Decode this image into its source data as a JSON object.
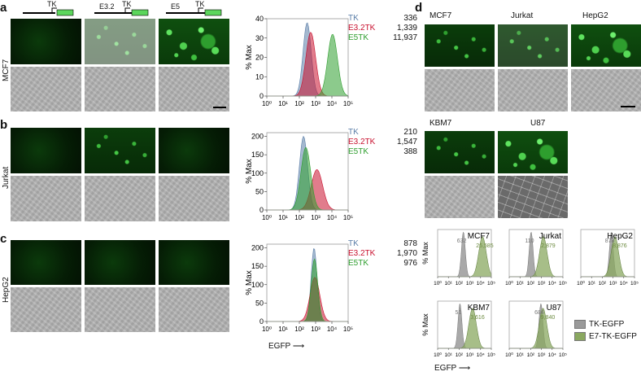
{
  "panels": {
    "a": "a",
    "b": "b",
    "c": "c",
    "d": "d"
  },
  "constructs": {
    "tk": "TK",
    "e32": "E3.2",
    "e5": "E5",
    "egfp_box": "EGFP"
  },
  "rows": {
    "mcf7": "MCF7",
    "jurkat": "Jurkat",
    "hepg2": "HepG2"
  },
  "legend_common": {
    "tk": "TK",
    "e32tk": "E3.2TK",
    "e5tk": "E5TK"
  },
  "hist_values": {
    "mcf7": {
      "tk": "336",
      "e32tk": "1,339",
      "e5tk": "11,937"
    },
    "jurkat": {
      "tk": "210",
      "e32tk": "1,547",
      "e5tk": "388"
    },
    "hepg2": {
      "tk": "878",
      "e32tk": "1,970",
      "e5tk": "976"
    }
  },
  "axis": {
    "ylabel": "% Max",
    "xlabel": "EGFP",
    "xticks": [
      "10⁰",
      "10¹",
      "10²",
      "10³",
      "10⁴",
      "10⁵"
    ]
  },
  "d": {
    "cells_top": [
      "MCF7",
      "Jurkat",
      "HepG2"
    ],
    "cells_mid": [
      "KBM7",
      "U87"
    ],
    "hist_values": {
      "mcf7": {
        "gray": "632",
        "green": "26,585"
      },
      "jurkat": {
        "gray": "110",
        "green": "2,879"
      },
      "hepg2": {
        "gray": "878",
        "green": "8,876"
      },
      "kbm7": {
        "gray": "51",
        "green": "3,616"
      },
      "u87": {
        "gray": "684",
        "green": "9,840"
      }
    },
    "legend": {
      "gray": "TK-EGFP",
      "green": "E7-TK-EGFP"
    }
  },
  "colors": {
    "tk": "#5a7ea8",
    "e32tk": "#c8102e",
    "e5tk": "#2e9e2e",
    "gray": "#9a9a9a",
    "green": "#8aa860"
  },
  "chart_data": [
    {
      "type": "area",
      "panel": "a",
      "xlabel": "EGFP",
      "ylabel": "% Max",
      "xscale": "log",
      "xlim": [
        1,
        100000
      ],
      "yticks": [
        0,
        10,
        20,
        30,
        40
      ],
      "ylim": [
        0,
        40
      ],
      "series": [
        {
          "name": "TK",
          "mfi": 336,
          "peak_x": 300,
          "peak_y": 38
        },
        {
          "name": "E3.2TK",
          "mfi": 1339,
          "peak_x": 500,
          "peak_y": 33
        },
        {
          "name": "E5TK",
          "mfi": 11937,
          "peak_x": 11000,
          "peak_y": 32
        }
      ]
    },
    {
      "type": "area",
      "panel": "b",
      "xlabel": "EGFP",
      "ylabel": "% Max",
      "xscale": "log",
      "xlim": [
        1,
        100000
      ],
      "yticks": [
        0,
        50,
        100,
        150,
        200
      ],
      "ylim": [
        0,
        210
      ],
      "series": [
        {
          "name": "TK",
          "mfi": 210,
          "peak_x": 180,
          "peak_y": 200
        },
        {
          "name": "E3.2TK",
          "mfi": 1547,
          "peak_x": 1200,
          "peak_y": 110
        },
        {
          "name": "E5TK",
          "mfi": 388,
          "peak_x": 250,
          "peak_y": 170
        }
      ]
    },
    {
      "type": "area",
      "panel": "c",
      "xlabel": "EGFP",
      "ylabel": "% Max",
      "xscale": "log",
      "xlim": [
        1,
        100000
      ],
      "yticks": [
        0,
        50,
        100,
        150,
        200
      ],
      "ylim": [
        0,
        210
      ],
      "series": [
        {
          "name": "TK",
          "mfi": 878,
          "peak_x": 800,
          "peak_y": 200
        },
        {
          "name": "E3.2TK",
          "mfi": 1970,
          "peak_x": 900,
          "peak_y": 120
        },
        {
          "name": "E5TK",
          "mfi": 976,
          "peak_x": 850,
          "peak_y": 170
        }
      ]
    }
  ]
}
